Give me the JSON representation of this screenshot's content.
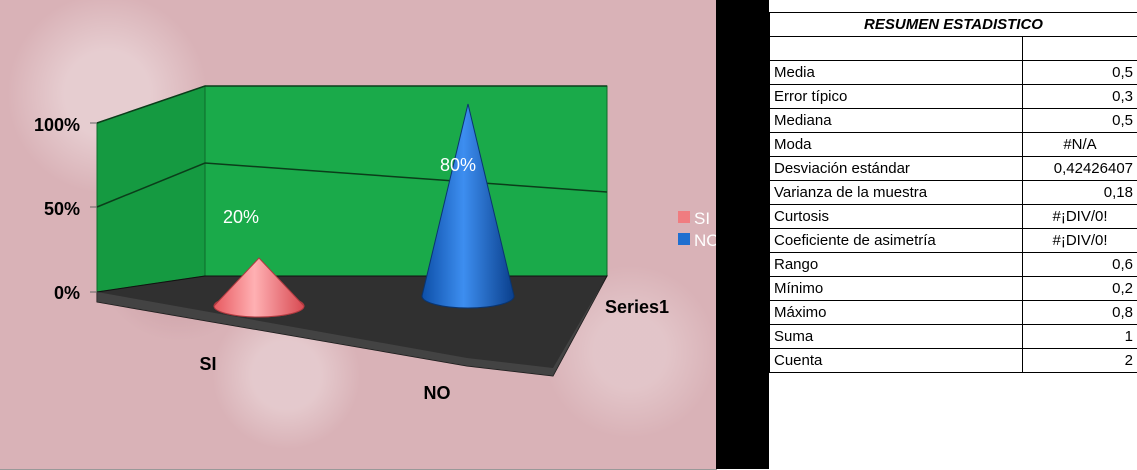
{
  "chart_data": {
    "type": "bar",
    "style": "3d-cone",
    "categories": [
      "SI",
      "NO"
    ],
    "series": [
      {
        "name": "Series1",
        "values": [
          0.2,
          0.8
        ]
      }
    ],
    "data_labels": [
      "20%",
      "80%"
    ],
    "y_ticks": [
      "0%",
      "50%",
      "100%"
    ],
    "ylim": [
      0,
      1
    ],
    "legend": {
      "position": "right",
      "entries": [
        "SI",
        "NO"
      ]
    },
    "depth_axis_label": "Series1",
    "colors": {
      "SI": "#f07c80",
      "NO": "#1f6fd0",
      "walls": "#1aaa4a",
      "floor": "#2e2e2e"
    }
  },
  "table": {
    "title": "RESUMEN ESTADISTICO",
    "header_value": "",
    "rows": [
      {
        "label": "Media",
        "value": "0,5",
        "align": "right"
      },
      {
        "label": "Error típico",
        "value": "0,3",
        "align": "right"
      },
      {
        "label": "Mediana",
        "value": "0,5",
        "align": "right"
      },
      {
        "label": "Moda",
        "value": "#N/A",
        "align": "center"
      },
      {
        "label": "Desviación estándar",
        "value": "0,42426407",
        "align": "right"
      },
      {
        "label": "Varianza de la muestra",
        "value": "0,18",
        "align": "right"
      },
      {
        "label": "Curtosis",
        "value": "#¡DIV/0!",
        "align": "center"
      },
      {
        "label": "Coeficiente de asimetría",
        "value": "#¡DIV/0!",
        "align": "center"
      },
      {
        "label": "Rango",
        "value": "0,6",
        "align": "right"
      },
      {
        "label": "Mínimo",
        "value": "0,2",
        "align": "right"
      },
      {
        "label": "Máximo",
        "value": "0,8",
        "align": "right"
      },
      {
        "label": "Suma",
        "value": "1",
        "align": "right"
      },
      {
        "label": "Cuenta",
        "value": "2",
        "align": "right"
      }
    ]
  }
}
